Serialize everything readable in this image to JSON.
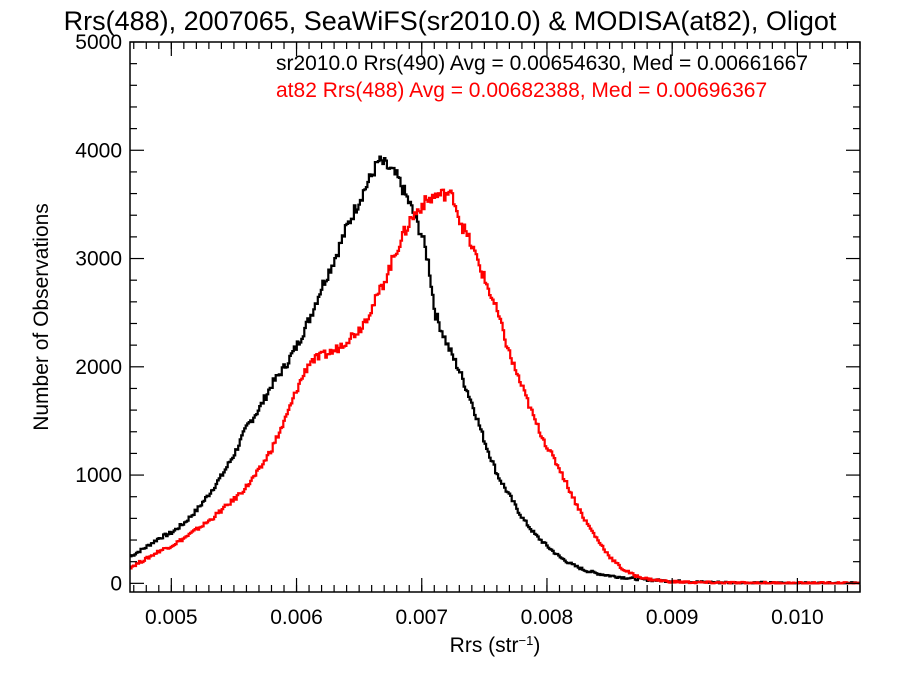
{
  "chart_data": {
    "type": "line",
    "title": "Rrs(488), 2007065, SeaWiFS(sr2010.0) & MODISA(at82), Oligot",
    "xlabel_main": "Rrs (str",
    "xlabel_sup": "−1",
    "xlabel_close": ")",
    "ylabel": "Number of Observations",
    "xlim": [
      0.00467,
      0.0105
    ],
    "ylim": [
      -80,
      5000
    ],
    "x_ticks": [
      {
        "value": 0.005,
        "label": "0.005"
      },
      {
        "value": 0.006,
        "label": "0.006"
      },
      {
        "value": 0.007,
        "label": "0.007"
      },
      {
        "value": 0.008,
        "label": "0.008"
      },
      {
        "value": 0.009,
        "label": "0.009"
      },
      {
        "value": 0.01,
        "label": "0.010"
      }
    ],
    "y_ticks": [
      {
        "value": 0,
        "label": "0"
      },
      {
        "value": 1000,
        "label": "1000"
      },
      {
        "value": 2000,
        "label": "2000"
      },
      {
        "value": 3000,
        "label": "3000"
      },
      {
        "value": 4000,
        "label": "4000"
      },
      {
        "value": 5000,
        "label": "5000"
      }
    ],
    "grid": false,
    "series": [
      {
        "legend": "sr2010.0 Rrs(490) Avg = 0.00654630, Med = 0.00661667",
        "color": "#000000",
        "points": [
          [
            0.00467,
            250
          ],
          [
            0.0048,
            340
          ],
          [
            0.0049,
            420
          ],
          [
            0.005,
            470
          ],
          [
            0.0051,
            560
          ],
          [
            0.0052,
            680
          ],
          [
            0.0053,
            830
          ],
          [
            0.0054,
            1000
          ],
          [
            0.0055,
            1200
          ],
          [
            0.0056,
            1450
          ],
          [
            0.0057,
            1620
          ],
          [
            0.0058,
            1840
          ],
          [
            0.0059,
            2000
          ],
          [
            0.006,
            2200
          ],
          [
            0.0061,
            2450
          ],
          [
            0.0062,
            2750
          ],
          [
            0.0063,
            3000
          ],
          [
            0.0064,
            3300
          ],
          [
            0.0065,
            3550
          ],
          [
            0.0066,
            3780
          ],
          [
            0.00665,
            3900
          ],
          [
            0.0067,
            3870
          ],
          [
            0.0068,
            3750
          ],
          [
            0.0069,
            3500
          ],
          [
            0.007,
            3200
          ],
          [
            0.00705,
            2950
          ],
          [
            0.0071,
            2500
          ],
          [
            0.0072,
            2200
          ],
          [
            0.0073,
            1950
          ],
          [
            0.0074,
            1650
          ],
          [
            0.0075,
            1300
          ],
          [
            0.0076,
            1000
          ],
          [
            0.0077,
            800
          ],
          [
            0.0078,
            600
          ],
          [
            0.0079,
            450
          ],
          [
            0.008,
            340
          ],
          [
            0.0081,
            240
          ],
          [
            0.0082,
            170
          ],
          [
            0.0083,
            120
          ],
          [
            0.0084,
            90
          ],
          [
            0.0085,
            70
          ],
          [
            0.0086,
            55
          ],
          [
            0.0087,
            42
          ],
          [
            0.0088,
            32
          ],
          [
            0.009,
            20
          ],
          [
            0.0092,
            12
          ],
          [
            0.0094,
            8
          ],
          [
            0.0096,
            5
          ],
          [
            0.0098,
            3
          ],
          [
            0.01,
            2
          ],
          [
            0.0105,
            1
          ]
        ]
      },
      {
        "legend": "at82 Rrs(488) Avg = 0.00682388, Med = 0.00696367",
        "color": "#ff0000",
        "points": [
          [
            0.00467,
            150
          ],
          [
            0.0048,
            230
          ],
          [
            0.0049,
            300
          ],
          [
            0.005,
            350
          ],
          [
            0.0051,
            420
          ],
          [
            0.0052,
            500
          ],
          [
            0.0053,
            580
          ],
          [
            0.0054,
            680
          ],
          [
            0.0055,
            780
          ],
          [
            0.0056,
            900
          ],
          [
            0.0057,
            1050
          ],
          [
            0.0058,
            1250
          ],
          [
            0.0059,
            1500
          ],
          [
            0.006,
            1800
          ],
          [
            0.0061,
            2050
          ],
          [
            0.0062,
            2100
          ],
          [
            0.0063,
            2150
          ],
          [
            0.0064,
            2250
          ],
          [
            0.0065,
            2350
          ],
          [
            0.0066,
            2550
          ],
          [
            0.0067,
            2800
          ],
          [
            0.0068,
            3100
          ],
          [
            0.0069,
            3350
          ],
          [
            0.007,
            3500
          ],
          [
            0.0071,
            3580
          ],
          [
            0.0072,
            3600
          ],
          [
            0.00725,
            3560
          ],
          [
            0.0073,
            3350
          ],
          [
            0.0074,
            3100
          ],
          [
            0.0075,
            2800
          ],
          [
            0.0076,
            2500
          ],
          [
            0.0077,
            2100
          ],
          [
            0.0078,
            1800
          ],
          [
            0.0079,
            1500
          ],
          [
            0.008,
            1250
          ],
          [
            0.0081,
            1050
          ],
          [
            0.0082,
            800
          ],
          [
            0.0083,
            580
          ],
          [
            0.0084,
            400
          ],
          [
            0.0085,
            240
          ],
          [
            0.0086,
            130
          ],
          [
            0.0087,
            70
          ],
          [
            0.0088,
            40
          ],
          [
            0.0089,
            25
          ],
          [
            0.009,
            15
          ],
          [
            0.0092,
            8
          ],
          [
            0.0094,
            5
          ],
          [
            0.0096,
            3
          ],
          [
            0.01,
            2
          ],
          [
            0.0105,
            1
          ]
        ]
      }
    ]
  }
}
